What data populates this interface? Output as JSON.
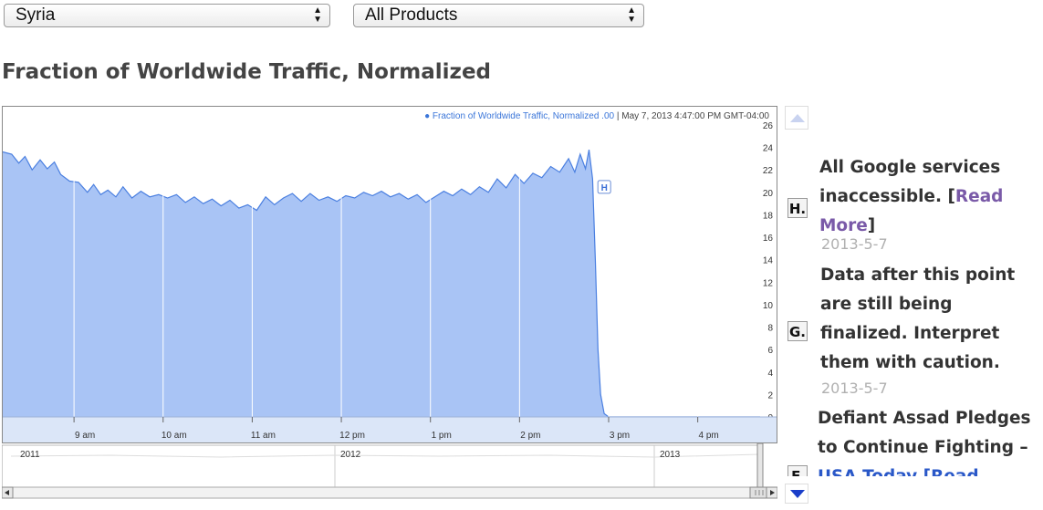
{
  "selectors": {
    "country": "Syria",
    "product": "All Products"
  },
  "page_title": "Fraction of Worldwide Traffic, Normalized",
  "legend": {
    "series": "Fraction of Worldwide Traffic, Normalized",
    "value": ".00",
    "datetime": "| May 7, 2013 4:47:00 PM GMT-04:00"
  },
  "marker_flag": "H",
  "chart_data": {
    "type": "area",
    "title": "Fraction of Worldwide Traffic, Normalized",
    "series_name": "Fraction of Worldwide Traffic, Normalized",
    "ylim": [
      0,
      26
    ],
    "y_ticks": [
      "0",
      "2",
      "4",
      "6",
      "8",
      "10",
      "12",
      "14",
      "16",
      "18",
      "20",
      "22",
      "24",
      "26"
    ],
    "x_tick_labels": [
      "9 am",
      "10 am",
      "11 am",
      "12 pm",
      "1 pm",
      "2 pm",
      "3 pm",
      "4 pm"
    ],
    "x_hours": [
      9,
      10,
      11,
      12,
      13,
      14,
      15,
      16
    ],
    "x_range_hours": [
      8.2,
      16.7
    ],
    "grid": true,
    "legend_placement": "top-right",
    "points": [
      [
        8.2,
        23.6
      ],
      [
        8.3,
        23.4
      ],
      [
        8.38,
        22.6
      ],
      [
        8.45,
        23.2
      ],
      [
        8.53,
        22.0
      ],
      [
        8.62,
        22.9
      ],
      [
        8.7,
        22.1
      ],
      [
        8.78,
        22.7
      ],
      [
        8.85,
        21.6
      ],
      [
        8.95,
        21.0
      ],
      [
        9.05,
        20.9
      ],
      [
        9.15,
        20.0
      ],
      [
        9.22,
        20.7
      ],
      [
        9.3,
        19.8
      ],
      [
        9.38,
        20.2
      ],
      [
        9.47,
        19.6
      ],
      [
        9.55,
        20.5
      ],
      [
        9.65,
        19.5
      ],
      [
        9.75,
        20.1
      ],
      [
        9.85,
        19.6
      ],
      [
        9.95,
        19.8
      ],
      [
        10.05,
        19.5
      ],
      [
        10.15,
        19.8
      ],
      [
        10.25,
        19.1
      ],
      [
        10.35,
        19.6
      ],
      [
        10.45,
        19.0
      ],
      [
        10.55,
        19.4
      ],
      [
        10.65,
        18.8
      ],
      [
        10.75,
        19.3
      ],
      [
        10.85,
        18.6
      ],
      [
        10.95,
        18.9
      ],
      [
        11.05,
        18.4
      ],
      [
        11.15,
        19.6
      ],
      [
        11.25,
        18.9
      ],
      [
        11.35,
        19.5
      ],
      [
        11.45,
        19.9
      ],
      [
        11.55,
        19.2
      ],
      [
        11.65,
        19.9
      ],
      [
        11.75,
        19.3
      ],
      [
        11.85,
        19.6
      ],
      [
        11.95,
        19.2
      ],
      [
        12.05,
        19.7
      ],
      [
        12.15,
        19.5
      ],
      [
        12.25,
        20.0
      ],
      [
        12.35,
        19.7
      ],
      [
        12.45,
        20.1
      ],
      [
        12.55,
        19.6
      ],
      [
        12.65,
        19.9
      ],
      [
        12.75,
        19.4
      ],
      [
        12.85,
        19.8
      ],
      [
        12.95,
        19.1
      ],
      [
        13.05,
        19.6
      ],
      [
        13.15,
        20.1
      ],
      [
        13.25,
        19.7
      ],
      [
        13.35,
        20.3
      ],
      [
        13.45,
        19.8
      ],
      [
        13.55,
        20.5
      ],
      [
        13.65,
        20.0
      ],
      [
        13.75,
        21.2
      ],
      [
        13.85,
        20.4
      ],
      [
        13.95,
        21.6
      ],
      [
        14.05,
        20.8
      ],
      [
        14.15,
        21.7
      ],
      [
        14.25,
        21.3
      ],
      [
        14.35,
        22.3
      ],
      [
        14.45,
        21.8
      ],
      [
        14.55,
        23.0
      ],
      [
        14.62,
        21.8
      ],
      [
        14.68,
        23.4
      ],
      [
        14.74,
        22.1
      ],
      [
        14.78,
        23.8
      ],
      [
        14.82,
        21.2
      ],
      [
        14.85,
        14.0
      ],
      [
        14.88,
        6.0
      ],
      [
        14.91,
        2.0
      ],
      [
        14.95,
        0.3
      ],
      [
        15.0,
        0.0
      ],
      [
        16.7,
        0.0
      ]
    ]
  },
  "navigator": {
    "years": [
      "2011",
      "2012",
      "2013"
    ]
  },
  "annotations": [
    {
      "letter": "H.",
      "text": "All Google services inaccessible. [",
      "link": "Read More",
      "text_end": "]",
      "date": "2013-5-7"
    },
    {
      "letter": "G.",
      "text": "Data after this point are still being finalized. Interpret them with caution.",
      "date": "2013-5-7"
    },
    {
      "letter": "F.",
      "text": "Defiant Assad Pledges to Continue Fighting – ",
      "link": "USA Today",
      "text_end": " [Read"
    }
  ]
}
